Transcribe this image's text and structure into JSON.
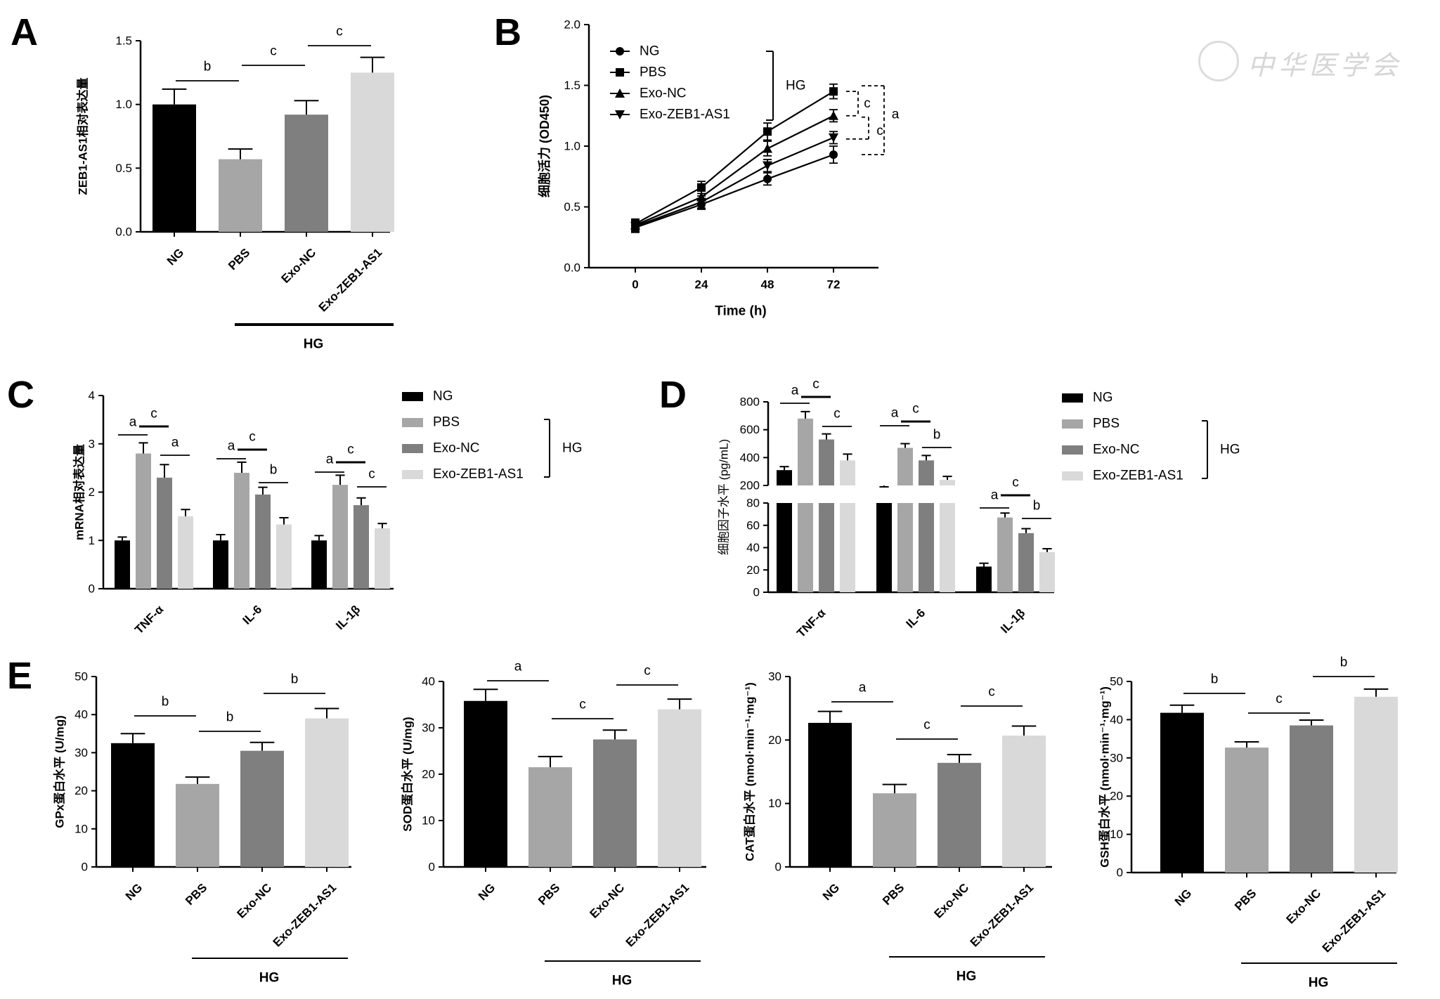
{
  "colors": {
    "NG": "#000000",
    "PBS": "#a6a6a6",
    "Exo-NC": "#7f7f7f",
    "Exo-ZEB1-AS1": "#d9d9d9"
  },
  "watermark_text": "中华医学会",
  "chart_data": [
    {
      "panel": "A",
      "type": "bar",
      "title": "",
      "ylabel": "ZEB1-AS1相对表达量",
      "xlabel": "",
      "ylim": [
        0,
        1.5
      ],
      "yticks": [
        "0.0",
        "0.5",
        "1.0",
        "1.5"
      ],
      "categories": [
        "NG",
        "PBS",
        "Exo-NC",
        "Exo-ZEB1-AS1"
      ],
      "values": [
        1.0,
        0.57,
        0.92,
        1.25
      ],
      "errors": [
        0.12,
        0.08,
        0.11,
        0.12
      ],
      "group_label": "HG",
      "significance": [
        {
          "from": 0,
          "to": 1,
          "label": "b"
        },
        {
          "from": 1,
          "to": 2,
          "label": "c"
        },
        {
          "from": 2,
          "to": 3,
          "label": "c"
        }
      ]
    },
    {
      "panel": "B",
      "type": "line",
      "title": "",
      "xlabel": "Time (h)",
      "ylabel": "细胞活力 (OD450)",
      "x": [
        0,
        24,
        48,
        72
      ],
      "xticks": [
        "0",
        "24",
        "48",
        "72"
      ],
      "ylim": [
        0,
        2.0
      ],
      "yticks": [
        "0.0",
        "0.5",
        "1.0",
        "1.5",
        "2.0"
      ],
      "series": [
        {
          "name": "NG",
          "marker": "circle",
          "values": [
            0.33,
            0.52,
            0.73,
            0.93
          ],
          "errors": [
            0.04,
            0.04,
            0.05,
            0.07
          ]
        },
        {
          "name": "PBS",
          "marker": "square",
          "values": [
            0.36,
            0.66,
            1.12,
            1.45
          ],
          "errors": [
            0.04,
            0.05,
            0.07,
            0.06
          ]
        },
        {
          "name": "Exo-NC",
          "marker": "triangle-up",
          "values": [
            0.35,
            0.58,
            0.98,
            1.25
          ],
          "errors": [
            0.04,
            0.05,
            0.06,
            0.05
          ]
        },
        {
          "name": "Exo-ZEB1-AS1",
          "marker": "triangle-down",
          "values": [
            0.34,
            0.54,
            0.84,
            1.07
          ],
          "errors": [
            0.04,
            0.05,
            0.05,
            0.05
          ]
        }
      ],
      "group_label": "HG",
      "significance_labels": [
        "c",
        "c",
        "a"
      ]
    },
    {
      "panel": "C",
      "type": "bar",
      "title": "",
      "ylabel": "mRNA相对表达量",
      "xlabel": "",
      "ylim": [
        0,
        4
      ],
      "yticks": [
        "0",
        "1",
        "2",
        "3",
        "4"
      ],
      "categories": [
        "TNF-α",
        "IL-6",
        "IL-1β"
      ],
      "series": [
        {
          "name": "NG",
          "values": [
            1.0,
            1.0,
            1.0
          ],
          "errors": [
            0.07,
            0.12,
            0.1
          ]
        },
        {
          "name": "PBS",
          "values": [
            2.8,
            2.4,
            2.15
          ],
          "errors": [
            0.22,
            0.22,
            0.2
          ]
        },
        {
          "name": "Exo-NC",
          "values": [
            2.3,
            1.95,
            1.73
          ],
          "errors": [
            0.27,
            0.15,
            0.15
          ]
        },
        {
          "name": "Exo-ZEB1-AS1",
          "values": [
            1.5,
            1.33,
            1.25
          ],
          "errors": [
            0.14,
            0.14,
            0.1
          ]
        }
      ],
      "group_label": "HG",
      "significance": [
        [
          "a",
          "c",
          "a"
        ],
        [
          "a",
          "c",
          "b"
        ],
        [
          "a",
          "c",
          "c"
        ]
      ]
    },
    {
      "panel": "D",
      "type": "bar",
      "title": "",
      "ylabel": "细胞因子水平 (pg/mL)",
      "xlabel": "",
      "broken_axis": true,
      "ylim_lower": [
        0,
        80
      ],
      "yticks_lower": [
        "0",
        "20",
        "40",
        "60",
        "80"
      ],
      "ylim_upper": [
        200,
        800
      ],
      "yticks_upper": [
        "200",
        "400",
        "600",
        "800"
      ],
      "categories": [
        "TNF-α",
        "IL-6",
        "IL-1β"
      ],
      "series": [
        {
          "name": "NG",
          "values": [
            310,
            170,
            23
          ],
          "errors": [
            25,
            20,
            3
          ]
        },
        {
          "name": "PBS",
          "values": [
            680,
            470,
            67
          ],
          "errors": [
            50,
            30,
            4
          ]
        },
        {
          "name": "Exo-NC",
          "values": [
            530,
            380,
            53
          ],
          "errors": [
            40,
            35,
            4
          ]
        },
        {
          "name": "Exo-ZEB1-AS1",
          "values": [
            380,
            240,
            36
          ],
          "errors": [
            45,
            25,
            3
          ]
        }
      ],
      "group_label": "HG",
      "significance": [
        [
          "a",
          "c",
          "c"
        ],
        [
          "a",
          "c",
          "b"
        ],
        [
          "a",
          "c",
          "b"
        ]
      ]
    },
    {
      "panel": "E",
      "type": "bar",
      "title": "",
      "ylabel": "GPx蛋白水平 (U/mg)",
      "ylim": [
        0,
        50
      ],
      "yticks": [
        "0",
        "10",
        "20",
        "30",
        "40",
        "50"
      ],
      "categories": [
        "NG",
        "PBS",
        "Exo-NC",
        "Exo-ZEB1-AS1"
      ],
      "values": [
        32.5,
        21.8,
        30.5,
        39
      ],
      "errors": [
        2.5,
        1.8,
        2.2,
        2.6
      ],
      "group_label": "HG",
      "significance": [
        {
          "from": 0,
          "to": 1,
          "label": "b"
        },
        {
          "from": 1,
          "to": 2,
          "label": "b"
        },
        {
          "from": 2,
          "to": 3,
          "label": "b"
        }
      ]
    },
    {
      "panel": "E",
      "type": "bar",
      "title": "",
      "ylabel": "SOD蛋白水平 (U/mg)",
      "ylim": [
        0,
        40
      ],
      "yticks": [
        "0",
        "10",
        "20",
        "30",
        "40"
      ],
      "categories": [
        "NG",
        "PBS",
        "Exo-NC",
        "Exo-ZEB1-AS1"
      ],
      "values": [
        35.8,
        21.5,
        27.5,
        34
      ],
      "errors": [
        2.5,
        2.3,
        2.0,
        2.2
      ],
      "group_label": "HG",
      "significance": [
        {
          "from": 0,
          "to": 1,
          "label": "a"
        },
        {
          "from": 1,
          "to": 2,
          "label": "c"
        },
        {
          "from": 2,
          "to": 3,
          "label": "c"
        }
      ]
    },
    {
      "panel": "E",
      "type": "bar",
      "title": "",
      "ylabel": "CAT蛋白水平 (nmol·min⁻¹·mg⁻¹)",
      "ylim": [
        0,
        30
      ],
      "yticks": [
        "0",
        "10",
        "20",
        "30"
      ],
      "categories": [
        "NG",
        "PBS",
        "Exo-NC",
        "Exo-ZEB1-AS1"
      ],
      "values": [
        22.7,
        11.6,
        16.4,
        20.7
      ],
      "errors": [
        1.8,
        1.4,
        1.3,
        1.5
      ],
      "group_label": "HG",
      "significance": [
        {
          "from": 0,
          "to": 1,
          "label": "a"
        },
        {
          "from": 1,
          "to": 2,
          "label": "c"
        },
        {
          "from": 2,
          "to": 3,
          "label": "c"
        }
      ]
    },
    {
      "panel": "E",
      "type": "bar",
      "title": "",
      "ylabel": "GSH蛋白水平 (nmol·min⁻¹·mg⁻¹)",
      "ylim": [
        0,
        50
      ],
      "yticks": [
        "0",
        "10",
        "20",
        "30",
        "40",
        "50"
      ],
      "categories": [
        "NG",
        "PBS",
        "Exo-NC",
        "Exo-ZEB1-AS1"
      ],
      "values": [
        41.8,
        32.7,
        38.5,
        46
      ],
      "errors": [
        2.0,
        1.5,
        1.4,
        2.0
      ],
      "group_label": "HG",
      "significance": [
        {
          "from": 0,
          "to": 1,
          "label": "b"
        },
        {
          "from": 1,
          "to": 2,
          "label": "c"
        },
        {
          "from": 2,
          "to": 3,
          "label": "b"
        }
      ]
    }
  ]
}
